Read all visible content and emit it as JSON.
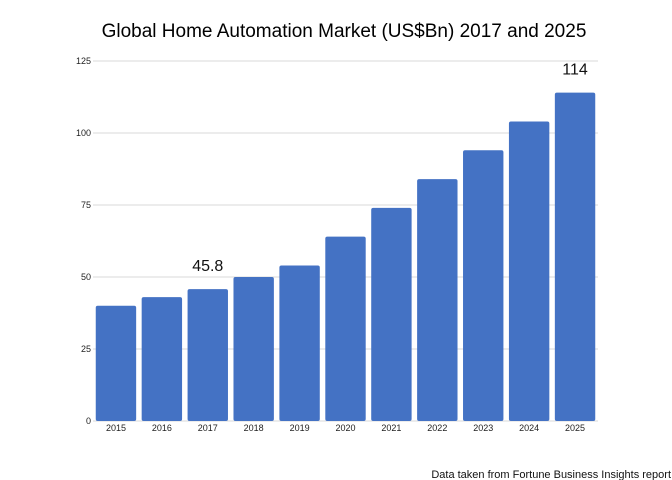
{
  "chart_data": {
    "type": "bar",
    "title": "Global Home Automation Market (US$Bn) 2017 and 2025",
    "xlabel": "",
    "ylabel": "",
    "categories": [
      "2015",
      "2016",
      "2017",
      "2018",
      "2019",
      "2020",
      "2021",
      "2022",
      "2023",
      "2024",
      "2025"
    ],
    "values": [
      40,
      43,
      45.8,
      50,
      54,
      64,
      74,
      84,
      94,
      104,
      114
    ],
    "data_labels": [
      "",
      "",
      "45.8",
      "",
      "",
      "",
      "",
      "",
      "",
      "",
      "114"
    ],
    "ylim": [
      0,
      125
    ],
    "yticks": [
      0,
      25,
      50,
      75,
      100,
      125
    ],
    "grid": true,
    "legend": "none",
    "bar_color": "#4472C4",
    "grid_color": "#d9d9d9",
    "source_note": "Data taken from Fortune Business Insights report"
  }
}
